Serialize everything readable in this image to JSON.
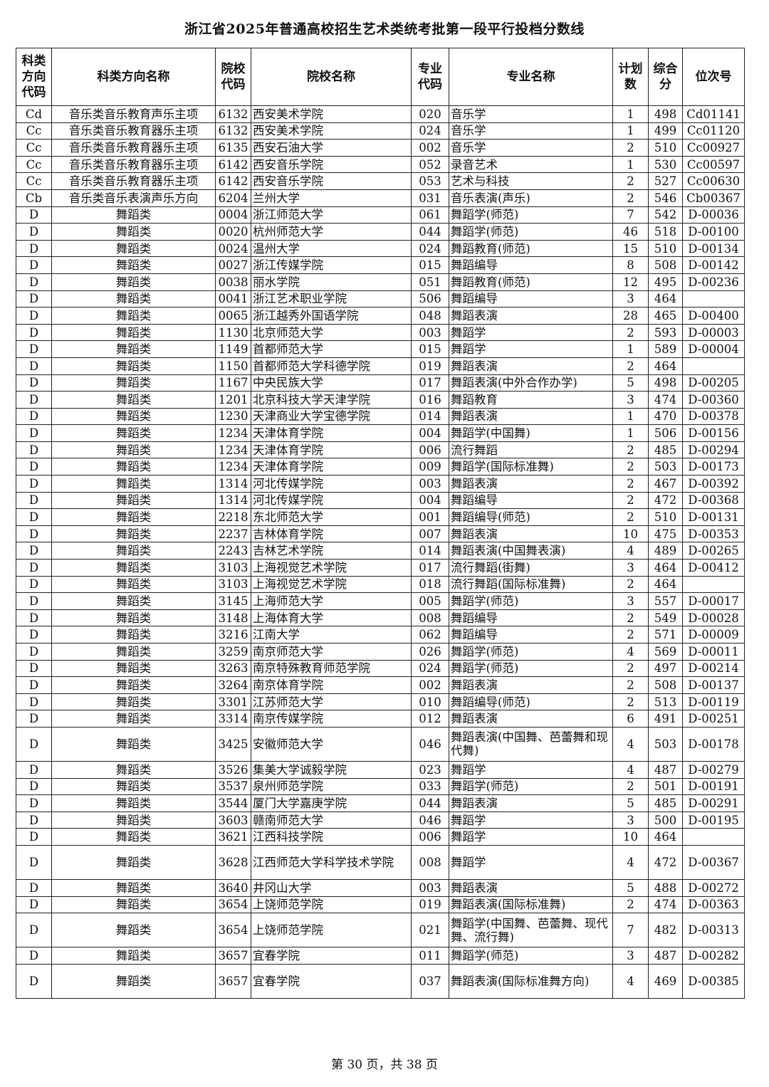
{
  "title": "浙江省2025年普通高校招生艺术类统考批第一段平行投档分数线",
  "headers": [
    "科类方向代码",
    "科类方向名称",
    "院校代码",
    "院校名称",
    "专业代码",
    "专业名称",
    "计划数",
    "综合分",
    "位次号"
  ],
  "rows": [
    [
      "Cd",
      "音乐类音乐教育声乐主项",
      "6132",
      "西安美术学院",
      "020",
      "音乐学",
      "1",
      "498",
      "Cd01141"
    ],
    [
      "Cc",
      "音乐类音乐教育器乐主项",
      "6132",
      "西安美术学院",
      "024",
      "音乐学",
      "1",
      "499",
      "Cc01120"
    ],
    [
      "Cc",
      "音乐类音乐教育器乐主项",
      "6135",
      "西安石油大学",
      "002",
      "音乐学",
      "2",
      "510",
      "Cc00927"
    ],
    [
      "Cc",
      "音乐类音乐教育器乐主项",
      "6142",
      "西安音乐学院",
      "052",
      "录音艺术",
      "1",
      "530",
      "Cc00597"
    ],
    [
      "Cc",
      "音乐类音乐教育器乐主项",
      "6142",
      "西安音乐学院",
      "053",
      "艺术与科技",
      "2",
      "527",
      "Cc00630"
    ],
    [
      "Cb",
      "音乐类音乐表演声乐方向",
      "6204",
      "兰州大学",
      "031",
      "音乐表演(声乐)",
      "2",
      "546",
      "Cb00367"
    ],
    [
      "D",
      "舞蹈类",
      "0004",
      "浙江师范大学",
      "061",
      "舞蹈学(师范)",
      "7",
      "542",
      "D-00036"
    ],
    [
      "D",
      "舞蹈类",
      "0020",
      "杭州师范大学",
      "044",
      "舞蹈学(师范)",
      "46",
      "518",
      "D-00100"
    ],
    [
      "D",
      "舞蹈类",
      "0024",
      "温州大学",
      "024",
      "舞蹈教育(师范)",
      "15",
      "510",
      "D-00134"
    ],
    [
      "D",
      "舞蹈类",
      "0027",
      "浙江传媒学院",
      "015",
      "舞蹈编导",
      "8",
      "508",
      "D-00142"
    ],
    [
      "D",
      "舞蹈类",
      "0038",
      "丽水学院",
      "051",
      "舞蹈教育(师范)",
      "12",
      "495",
      "D-00236"
    ],
    [
      "D",
      "舞蹈类",
      "0041",
      "浙江艺术职业学院",
      "506",
      "舞蹈编导",
      "3",
      "464",
      ""
    ],
    [
      "D",
      "舞蹈类",
      "0065",
      "浙江越秀外国语学院",
      "048",
      "舞蹈表演",
      "28",
      "465",
      "D-00400"
    ],
    [
      "D",
      "舞蹈类",
      "1130",
      "北京师范大学",
      "003",
      "舞蹈学",
      "2",
      "593",
      "D-00003"
    ],
    [
      "D",
      "舞蹈类",
      "1149",
      "首都师范大学",
      "015",
      "舞蹈学",
      "1",
      "589",
      "D-00004"
    ],
    [
      "D",
      "舞蹈类",
      "1150",
      "首都师范大学科德学院",
      "019",
      "舞蹈表演",
      "2",
      "464",
      ""
    ],
    [
      "D",
      "舞蹈类",
      "1167",
      "中央民族大学",
      "017",
      "舞蹈表演(中外合作办学)",
      "5",
      "498",
      "D-00205"
    ],
    [
      "D",
      "舞蹈类",
      "1201",
      "北京科技大学天津学院",
      "016",
      "舞蹈教育",
      "3",
      "474",
      "D-00360"
    ],
    [
      "D",
      "舞蹈类",
      "1230",
      "天津商业大学宝德学院",
      "014",
      "舞蹈表演",
      "1",
      "470",
      "D-00378"
    ],
    [
      "D",
      "舞蹈类",
      "1234",
      "天津体育学院",
      "004",
      "舞蹈学(中国舞)",
      "1",
      "506",
      "D-00156"
    ],
    [
      "D",
      "舞蹈类",
      "1234",
      "天津体育学院",
      "006",
      "流行舞蹈",
      "2",
      "485",
      "D-00294"
    ],
    [
      "D",
      "舞蹈类",
      "1234",
      "天津体育学院",
      "009",
      "舞蹈学(国际标准舞)",
      "2",
      "503",
      "D-00173"
    ],
    [
      "D",
      "舞蹈类",
      "1314",
      "河北传媒学院",
      "003",
      "舞蹈表演",
      "2",
      "467",
      "D-00392"
    ],
    [
      "D",
      "舞蹈类",
      "1314",
      "河北传媒学院",
      "004",
      "舞蹈编导",
      "2",
      "472",
      "D-00368"
    ],
    [
      "D",
      "舞蹈类",
      "2218",
      "东北师范大学",
      "001",
      "舞蹈编导(师范)",
      "2",
      "510",
      "D-00131"
    ],
    [
      "D",
      "舞蹈类",
      "2237",
      "吉林体育学院",
      "007",
      "舞蹈表演",
      "10",
      "475",
      "D-00353"
    ],
    [
      "D",
      "舞蹈类",
      "2243",
      "吉林艺术学院",
      "014",
      "舞蹈表演(中国舞表演)",
      "4",
      "489",
      "D-00265"
    ],
    [
      "D",
      "舞蹈类",
      "3103",
      "上海视觉艺术学院",
      "017",
      "流行舞蹈(街舞)",
      "3",
      "464",
      "D-00412"
    ],
    [
      "D",
      "舞蹈类",
      "3103",
      "上海视觉艺术学院",
      "018",
      "流行舞蹈(国际标准舞)",
      "2",
      "464",
      ""
    ],
    [
      "D",
      "舞蹈类",
      "3145",
      "上海师范大学",
      "005",
      "舞蹈学(师范)",
      "3",
      "557",
      "D-00017"
    ],
    [
      "D",
      "舞蹈类",
      "3148",
      "上海体育大学",
      "008",
      "舞蹈编导",
      "2",
      "549",
      "D-00028"
    ],
    [
      "D",
      "舞蹈类",
      "3216",
      "江南大学",
      "062",
      "舞蹈编导",
      "2",
      "571",
      "D-00009"
    ],
    [
      "D",
      "舞蹈类",
      "3259",
      "南京师范大学",
      "026",
      "舞蹈学(师范)",
      "4",
      "569",
      "D-00011"
    ],
    [
      "D",
      "舞蹈类",
      "3263",
      "南京特殊教育师范学院",
      "024",
      "舞蹈学(师范)",
      "2",
      "497",
      "D-00214"
    ],
    [
      "D",
      "舞蹈类",
      "3264",
      "南京体育学院",
      "002",
      "舞蹈表演",
      "2",
      "508",
      "D-00137"
    ],
    [
      "D",
      "舞蹈类",
      "3301",
      "江苏师范大学",
      "010",
      "舞蹈编导(师范)",
      "2",
      "513",
      "D-00119"
    ],
    [
      "D",
      "舞蹈类",
      "3314",
      "南京传媒学院",
      "012",
      "舞蹈表演",
      "6",
      "491",
      "D-00251"
    ],
    [
      "D",
      "舞蹈类",
      "3425",
      "安徽师范大学",
      "046",
      "舞蹈表演(中国舞、芭蕾舞和现代舞)",
      "4",
      "503",
      "D-00178"
    ],
    [
      "D",
      "舞蹈类",
      "3526",
      "集美大学诚毅学院",
      "023",
      "舞蹈学",
      "4",
      "487",
      "D-00279"
    ],
    [
      "D",
      "舞蹈类",
      "3537",
      "泉州师范学院",
      "033",
      "舞蹈学(师范)",
      "2",
      "501",
      "D-00191"
    ],
    [
      "D",
      "舞蹈类",
      "3544",
      "厦门大学嘉庚学院",
      "044",
      "舞蹈表演",
      "5",
      "485",
      "D-00291"
    ],
    [
      "D",
      "舞蹈类",
      "3603",
      "赣南师范大学",
      "046",
      "舞蹈学",
      "3",
      "500",
      "D-00195"
    ],
    [
      "D",
      "舞蹈类",
      "3621",
      "江西科技学院",
      "006",
      "舞蹈学",
      "10",
      "464",
      ""
    ],
    [
      "D",
      "舞蹈类",
      "3628",
      "江西师范大学科学技术学院",
      "008",
      "舞蹈学",
      "4",
      "472",
      "D-00367"
    ],
    [
      "D",
      "舞蹈类",
      "3640",
      "井冈山大学",
      "003",
      "舞蹈表演",
      "5",
      "488",
      "D-00272"
    ],
    [
      "D",
      "舞蹈类",
      "3654",
      "上饶师范学院",
      "019",
      "舞蹈表演(国际标准舞)",
      "2",
      "474",
      "D-00363"
    ],
    [
      "D",
      "舞蹈类",
      "3654",
      "上饶师范学院",
      "021",
      "舞蹈学(中国舞、芭蕾舞、现代舞、流行舞)",
      "7",
      "482",
      "D-00313"
    ],
    [
      "D",
      "舞蹈类",
      "3657",
      "宜春学院",
      "011",
      "舞蹈学(师范)",
      "3",
      "487",
      "D-00282"
    ],
    [
      "D",
      "舞蹈类",
      "3657",
      "宜春学院",
      "037",
      "舞蹈表演(国际标准舞方向)",
      "4",
      "469",
      "D-00385"
    ]
  ],
  "footer": "第 30 页，共 38 页"
}
